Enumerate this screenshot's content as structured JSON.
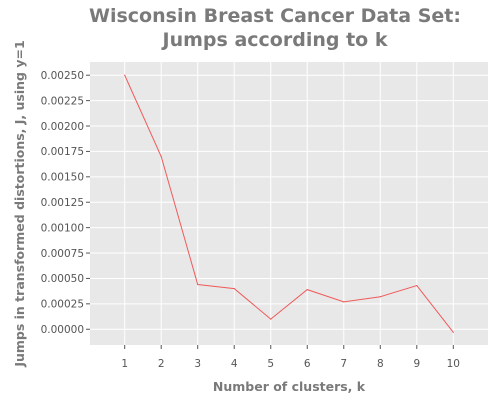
{
  "chart_data": {
    "type": "line",
    "title": "Wisconsin Breast Cancer Data Set: Jumps according to k",
    "xlabel": "Number of clusters, k",
    "ylabel": "Jumps in transformed distortions, J, using y=1",
    "x": [
      1,
      2,
      3,
      4,
      5,
      6,
      7,
      8,
      9,
      10
    ],
    "series": [
      {
        "values": [
          0.0025,
          0.0017,
          0.00044,
          0.0004,
          0.0001,
          0.00039,
          0.00027,
          0.00032,
          0.00043,
          -3e-05
        ]
      }
    ],
    "xticks": [
      "1",
      "2",
      "3",
      "4",
      "5",
      "6",
      "7",
      "8",
      "9",
      "10"
    ],
    "yticks": [
      "0.00000",
      "0.00025",
      "0.00050",
      "0.00075",
      "0.00100",
      "0.00125",
      "0.00150",
      "0.00175",
      "0.00200",
      "0.00225",
      "0.00250"
    ],
    "xlim": [
      0.05,
      10.95
    ],
    "ylim": [
      -0.000155,
      0.00263
    ],
    "grid": true,
    "colors": {
      "panel": "#e8e8e8",
      "grid": "#ffffff",
      "line": "#f05a5a"
    }
  }
}
